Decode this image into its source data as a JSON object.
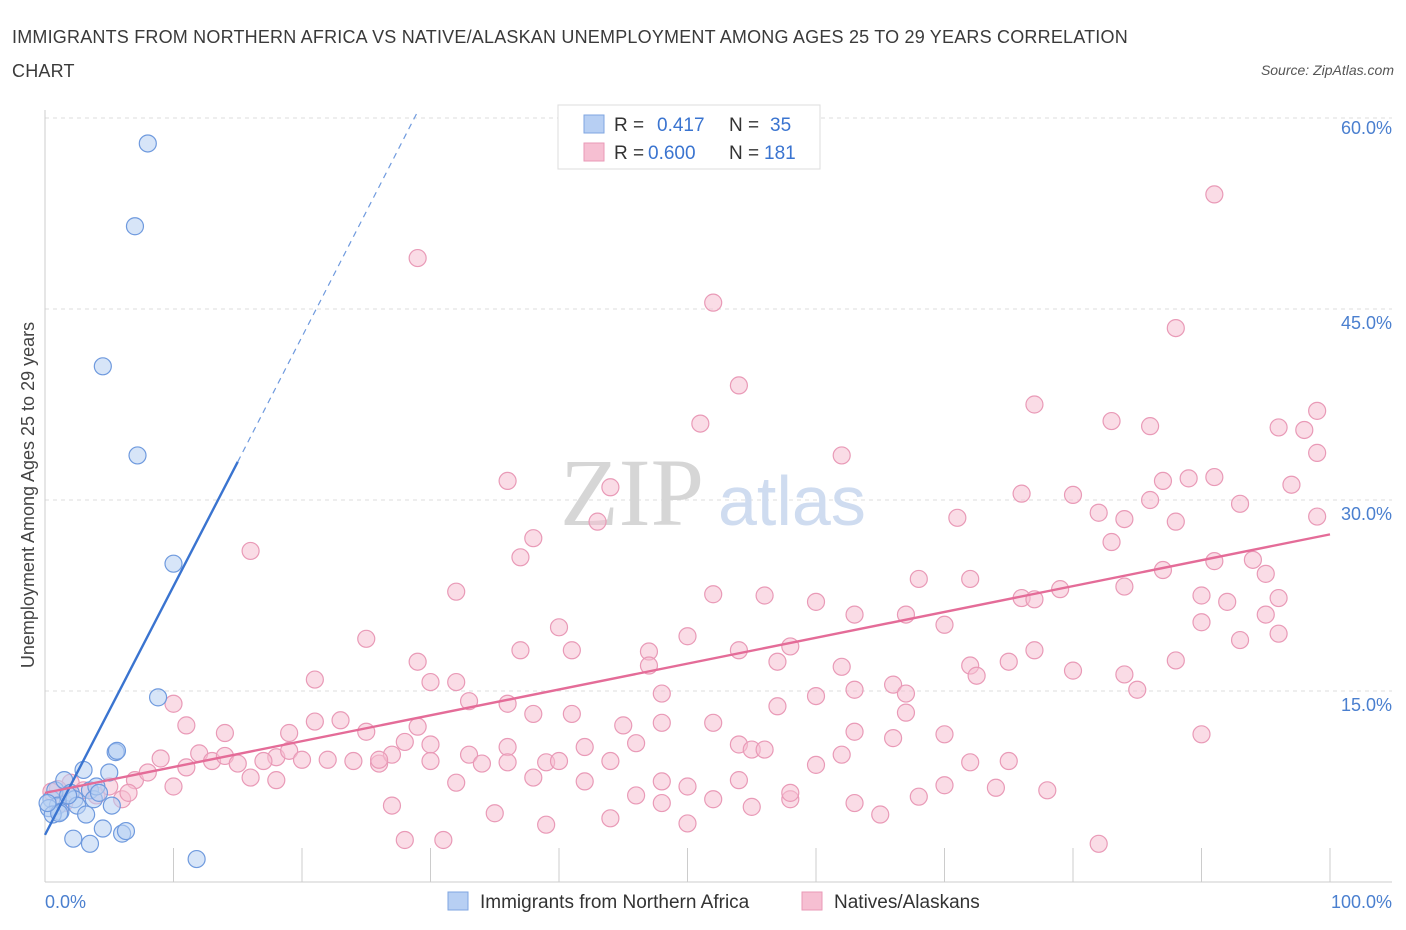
{
  "title": "IMMIGRANTS FROM NORTHERN AFRICA VS NATIVE/ALASKAN UNEMPLOYMENT AMONG AGES 25 TO 29 YEARS CORRELATION CHART",
  "source": "Source: ZipAtlas.com",
  "watermark": {
    "zip": "ZIP",
    "atlas": "atlas"
  },
  "colors": {
    "blue": "#5b8fd8",
    "blue_fill": "#b7cff3",
    "pink": "#e46c98",
    "pink_fill": "#f6bfd2",
    "axis_label": "#4a7fcf"
  },
  "legend": {
    "series1": {
      "r_label": "R =",
      "r_value": "0.417",
      "n_label": "N =",
      "n_value": "35"
    },
    "series2": {
      "r_label": "R =",
      "r_value": "0.600",
      "n_label": "N =",
      "n_value": "181"
    }
  },
  "bottom_legend": {
    "series1": "Immigrants from Northern Africa",
    "series2": "Natives/Alaskans"
  },
  "chart_data": {
    "type": "scatter",
    "title": "IMMIGRANTS FROM NORTHERN AFRICA VS NATIVE/ALASKAN UNEMPLOYMENT AMONG AGES 25 TO 29 YEARS CORRELATION CHART",
    "xlabel": "",
    "ylabel": "Unemployment Among Ages 25 to 29 years",
    "xlim": [
      0,
      100
    ],
    "ylim": [
      0,
      60
    ],
    "x_tick_labels": [
      "0.0%",
      "100.0%"
    ],
    "y_ticks": [
      15,
      30,
      45,
      60
    ],
    "y_tick_labels": [
      "15.0%",
      "30.0%",
      "45.0%",
      "60.0%"
    ],
    "grid": true,
    "legend_placement": "top-center",
    "series": [
      {
        "name": "Immigrants from Northern Africa",
        "color": "#5b8fd8",
        "trend": {
          "x0": 0,
          "y0": 3.7,
          "x1": 15,
          "y1": 33,
          "dash_to_x": 29,
          "dash_to_y": 60.5
        },
        "points": [
          [
            8,
            58
          ],
          [
            7,
            51.5
          ],
          [
            4.5,
            40.5
          ],
          [
            7.2,
            33.5
          ],
          [
            10,
            25
          ],
          [
            8.8,
            14.5
          ],
          [
            5.5,
            10.2
          ],
          [
            5.6,
            10.3
          ],
          [
            0.5,
            6.5
          ],
          [
            0.8,
            7.2
          ],
          [
            1,
            6
          ],
          [
            1.2,
            5.5
          ],
          [
            1.5,
            8
          ],
          [
            2,
            7
          ],
          [
            2.3,
            6.5
          ],
          [
            2.5,
            6
          ],
          [
            0.3,
            5.8
          ],
          [
            0.6,
            5.3
          ],
          [
            1.1,
            5.4
          ],
          [
            3,
            8.8
          ],
          [
            3.5,
            7.2
          ],
          [
            3.8,
            6.5
          ],
          [
            4,
            7.5
          ],
          [
            4.2,
            7
          ],
          [
            5,
            8.6
          ],
          [
            5.2,
            6
          ],
          [
            3.2,
            5.3
          ],
          [
            4.5,
            4.2
          ],
          [
            6,
            3.8
          ],
          [
            6.3,
            4
          ],
          [
            2.2,
            3.4
          ],
          [
            3.5,
            3
          ],
          [
            11.8,
            1.8
          ],
          [
            0.2,
            6.2
          ],
          [
            1.8,
            6.8
          ]
        ]
      },
      {
        "name": "Natives/Alaskans",
        "color": "#e46c98",
        "trend": {
          "x0": 0,
          "y0": 7,
          "x1": 100,
          "y1": 27.3
        },
        "points": [
          [
            91,
            54
          ],
          [
            29,
            49
          ],
          [
            52,
            45.5
          ],
          [
            88,
            43.5
          ],
          [
            54,
            39
          ],
          [
            77,
            37.5
          ],
          [
            99,
            37
          ],
          [
            51,
            36
          ],
          [
            83,
            36.2
          ],
          [
            86,
            35.8
          ],
          [
            96,
            35.7
          ],
          [
            98,
            35.5
          ],
          [
            62,
            33.5
          ],
          [
            99,
            33.7
          ],
          [
            36,
            31.5
          ],
          [
            44,
            31
          ],
          [
            87,
            31.5
          ],
          [
            89,
            31.7
          ],
          [
            91,
            31.8
          ],
          [
            97,
            31.2
          ],
          [
            76,
            30.5
          ],
          [
            80,
            30.4
          ],
          [
            82,
            29
          ],
          [
            86,
            30
          ],
          [
            93,
            29.7
          ],
          [
            84,
            28.5
          ],
          [
            88,
            28.3
          ],
          [
            99,
            28.7
          ],
          [
            43,
            28.3
          ],
          [
            71,
            28.6
          ],
          [
            83,
            26.7
          ],
          [
            38,
            27
          ],
          [
            16,
            26
          ],
          [
            37,
            25.5
          ],
          [
            68,
            23.8
          ],
          [
            72,
            23.8
          ],
          [
            76,
            22.3
          ],
          [
            77,
            22.2
          ],
          [
            79,
            23
          ],
          [
            90,
            22.5
          ],
          [
            92,
            22
          ],
          [
            96,
            22.3
          ],
          [
            95,
            21
          ],
          [
            90,
            20.4
          ],
          [
            84,
            23.2
          ],
          [
            87,
            24.5
          ],
          [
            91,
            25.2
          ],
          [
            94,
            25.3
          ],
          [
            95,
            24.2
          ],
          [
            32,
            22.8
          ],
          [
            52,
            22.6
          ],
          [
            56,
            22.5
          ],
          [
            60,
            22
          ],
          [
            63,
            21
          ],
          [
            67,
            21
          ],
          [
            70,
            20.2
          ],
          [
            40,
            20
          ],
          [
            25,
            19.1
          ],
          [
            50,
            19.3
          ],
          [
            54,
            18.2
          ],
          [
            58,
            18.5
          ],
          [
            62,
            16.9
          ],
          [
            37,
            18.2
          ],
          [
            41,
            18.2
          ],
          [
            47,
            18.1
          ],
          [
            47,
            17
          ],
          [
            57,
            17.3
          ],
          [
            75,
            17.3
          ],
          [
            77,
            18.2
          ],
          [
            80,
            16.6
          ],
          [
            84,
            16.3
          ],
          [
            88,
            17.4
          ],
          [
            96,
            19.5
          ],
          [
            93,
            19
          ],
          [
            29,
            17.3
          ],
          [
            21,
            15.9
          ],
          [
            30,
            15.7
          ],
          [
            33,
            14.2
          ],
          [
            32,
            15.7
          ],
          [
            36,
            14
          ],
          [
            38,
            13.2
          ],
          [
            41,
            13.2
          ],
          [
            48,
            14.8
          ],
          [
            63,
            15.1
          ],
          [
            66,
            15.5
          ],
          [
            67,
            14.8
          ],
          [
            72,
            17
          ],
          [
            72.5,
            16.2
          ],
          [
            85,
            15.1
          ],
          [
            90,
            11.6
          ],
          [
            75,
            9.5
          ],
          [
            21,
            12.6
          ],
          [
            10,
            14
          ],
          [
            11,
            12.3
          ],
          [
            14,
            11.7
          ],
          [
            18,
            9.8
          ],
          [
            19,
            11.7
          ],
          [
            23,
            12.7
          ],
          [
            25,
            11.8
          ],
          [
            26,
            9.3
          ],
          [
            27,
            10
          ],
          [
            29,
            12.2
          ],
          [
            30,
            10.8
          ],
          [
            33,
            10
          ],
          [
            36,
            10.6
          ],
          [
            39,
            9.4
          ],
          [
            42,
            10.6
          ],
          [
            45,
            12.3
          ],
          [
            46,
            10.9
          ],
          [
            48,
            12.5
          ],
          [
            52,
            12.5
          ],
          [
            54,
            10.8
          ],
          [
            55,
            10.4
          ],
          [
            57,
            13.8
          ],
          [
            60,
            14.6
          ],
          [
            62,
            10
          ],
          [
            63,
            11.8
          ],
          [
            66,
            11.3
          ],
          [
            67,
            13.3
          ],
          [
            70,
            11.6
          ],
          [
            72,
            9.4
          ],
          [
            7,
            8
          ],
          [
            8,
            8.6
          ],
          [
            9,
            9.7
          ],
          [
            10,
            7.5
          ],
          [
            11,
            9
          ],
          [
            12,
            10.1
          ],
          [
            13,
            9.5
          ],
          [
            14,
            9.9
          ],
          [
            15,
            9.3
          ],
          [
            16,
            8.2
          ],
          [
            17,
            9.5
          ],
          [
            18,
            8
          ],
          [
            19,
            10.3
          ],
          [
            20,
            9.6
          ],
          [
            22,
            9.6
          ],
          [
            24,
            9.5
          ],
          [
            26,
            9.6
          ],
          [
            28,
            11
          ],
          [
            30,
            9.5
          ],
          [
            32,
            7.8
          ],
          [
            34,
            9.3
          ],
          [
            36,
            9.4
          ],
          [
            38,
            8.2
          ],
          [
            40,
            9.5
          ],
          [
            42,
            7.9
          ],
          [
            44,
            9.5
          ],
          [
            48,
            7.9
          ],
          [
            50,
            7.5
          ],
          [
            52,
            6.5
          ],
          [
            54,
            8
          ],
          [
            56,
            10.4
          ],
          [
            58,
            6.5
          ],
          [
            60,
            9.2
          ],
          [
            63,
            6.2
          ],
          [
            65,
            5.3
          ],
          [
            68,
            6.7
          ],
          [
            70,
            7.6
          ],
          [
            74,
            7.4
          ],
          [
            78,
            7.2
          ],
          [
            82,
            3
          ],
          [
            2,
            7.8
          ],
          [
            3,
            7.2
          ],
          [
            4,
            6.8
          ],
          [
            5,
            7.5
          ],
          [
            6,
            6.5
          ],
          [
            6.5,
            7
          ],
          [
            1,
            7.3
          ],
          [
            1.5,
            6.2
          ],
          [
            0.5,
            7.1
          ],
          [
            27,
            6
          ],
          [
            28,
            3.3
          ],
          [
            31,
            3.3
          ],
          [
            35,
            5.4
          ],
          [
            39,
            4.5
          ],
          [
            44,
            5
          ],
          [
            46,
            6.8
          ],
          [
            48,
            6.2
          ],
          [
            50,
            4.6
          ],
          [
            55,
            5.9
          ],
          [
            58,
            7
          ]
        ]
      }
    ]
  }
}
